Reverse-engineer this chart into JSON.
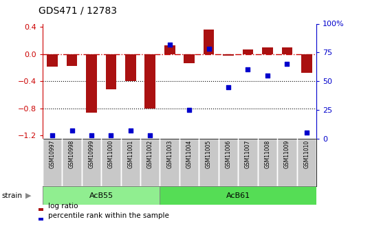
{
  "title": "GDS471 / 12783",
  "samples": [
    "GSM10997",
    "GSM10998",
    "GSM10999",
    "GSM11000",
    "GSM11001",
    "GSM11002",
    "GSM11003",
    "GSM11004",
    "GSM11005",
    "GSM11006",
    "GSM11007",
    "GSM11008",
    "GSM11009",
    "GSM11010"
  ],
  "log_ratio": [
    -0.18,
    -0.17,
    -0.87,
    -0.52,
    -0.4,
    -0.8,
    0.13,
    -0.13,
    0.36,
    -0.02,
    0.07,
    0.1,
    0.1,
    -0.28
  ],
  "percentile": [
    3,
    7,
    3,
    3,
    7,
    3,
    82,
    25,
    78,
    45,
    60,
    55,
    65,
    5
  ],
  "groups": [
    {
      "label": "AcB55",
      "n_samples": 6,
      "color": "#90EE90"
    },
    {
      "label": "AcB61",
      "n_samples": 8,
      "color": "#55DD55"
    }
  ],
  "ylim": [
    -1.25,
    0.45
  ],
  "y2lim": [
    0,
    100
  ],
  "yticks": [
    -1.2,
    -0.8,
    -0.4,
    0.0,
    0.4
  ],
  "y2ticks": [
    0,
    25,
    50,
    75,
    100
  ],
  "y2ticklabels": [
    "0",
    "25",
    "50",
    "75",
    "100%"
  ],
  "hlines": [
    -0.8,
    -0.4
  ],
  "bar_color": "#AA1111",
  "dot_color": "#0000CC",
  "dashed_color": "#CC0000",
  "bg_color": "#FFFFFF",
  "sample_box_color": "#C8C8C8",
  "legend_items": [
    {
      "label": "log ratio",
      "color": "#AA1111"
    },
    {
      "label": "percentile rank within the sample",
      "color": "#0000CC"
    }
  ]
}
